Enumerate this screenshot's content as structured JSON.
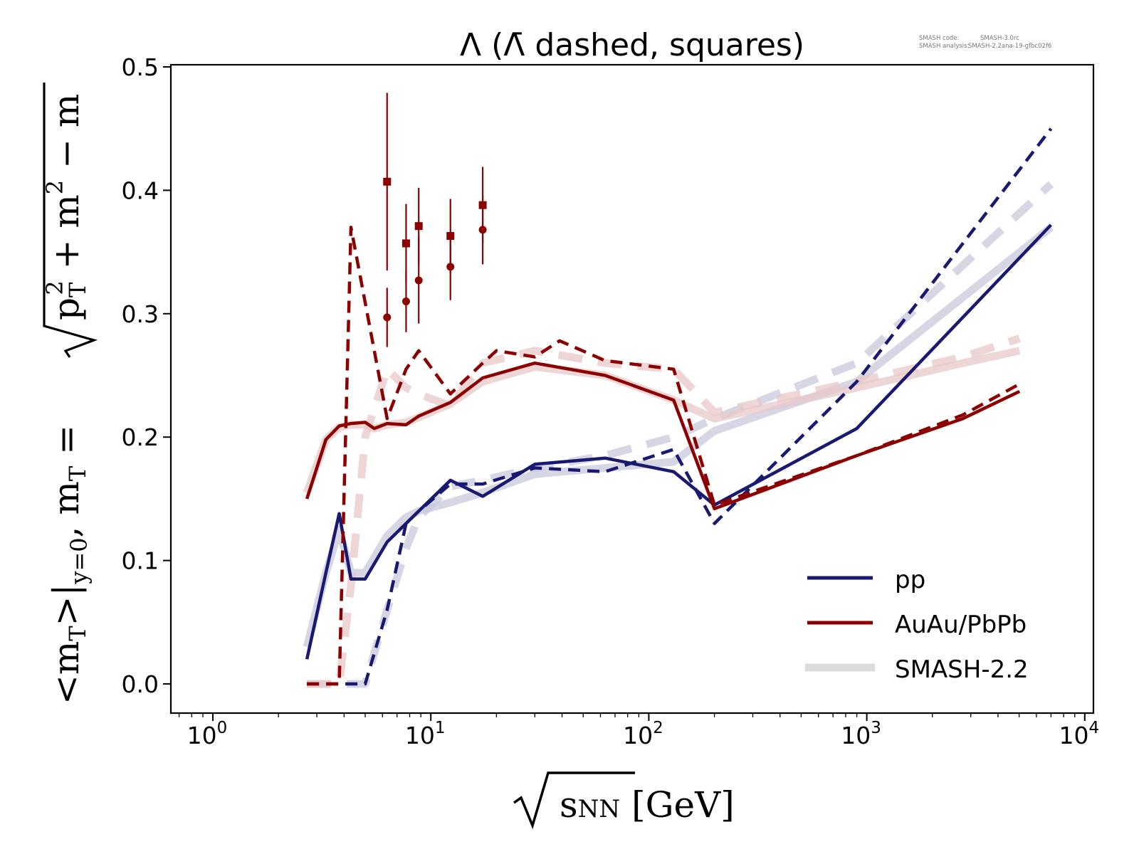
{
  "chart_data": {
    "type": "line",
    "title": "Λ (Λ̄ dashed, squares)",
    "xlabel": "√sNN [GeV]",
    "ylabel": "<mT>|y=0, mT = √(pT² + m²) − m",
    "xscale": "log",
    "xlim": [
      0.62,
      8700
    ],
    "ylim": [
      -0.024,
      0.502
    ],
    "x_ticks": [
      {
        "base": "10",
        "exp": "0",
        "value": 1
      },
      {
        "base": "10",
        "exp": "1",
        "value": 10
      },
      {
        "base": "10",
        "exp": "2",
        "value": 100
      },
      {
        "base": "10",
        "exp": "3",
        "value": 1000
      },
      {
        "base": "10",
        "exp": "4",
        "value": 10000
      }
    ],
    "y_ticks": [
      "0.0",
      "0.1",
      "0.2",
      "0.3",
      "0.4",
      "0.5"
    ],
    "y_tick_values": [
      0.0,
      0.1,
      0.2,
      0.3,
      0.4,
      0.5
    ],
    "grid": false,
    "legend_position": "lower-right",
    "legend": [
      {
        "label": "pp",
        "color": "#191970",
        "style": "solid"
      },
      {
        "label": "AuAu/PbPb",
        "color": "#8b0000",
        "style": "solid"
      },
      {
        "label": "SMASH-2.2",
        "color": "#dcdcdc",
        "style": "thick"
      }
    ],
    "annotation": {
      "line1_key": "SMASH code:",
      "line1_val": "SMASH-3.0rc",
      "line2_key": "SMASH analysis:",
      "line2_val": "SMASH-2.2ana-19-gfbc02f6"
    },
    "series": [
      {
        "name": "pp Λ (SMASH-2.2)",
        "color": "#c8c8dc",
        "style": "smash-solid",
        "x": [
          2.7,
          3.3,
          3.8,
          4.3,
          5.0,
          6.3,
          7.7,
          8.8,
          12.3,
          17.3,
          30,
          63,
          130,
          200,
          900,
          7000
        ],
        "y": [
          0.03,
          0.09,
          0.125,
          0.09,
          0.09,
          0.12,
          0.135,
          0.14,
          0.147,
          0.155,
          0.17,
          0.175,
          0.18,
          0.205,
          0.245,
          0.37
        ]
      },
      {
        "name": "pp anti-Λ (SMASH-2.2)",
        "color": "#c8c8dc",
        "style": "smash-dashed",
        "x": [
          2.7,
          3.8,
          5.0,
          6.3,
          7.7,
          8.8,
          12.3,
          17.3,
          30,
          63,
          130,
          200,
          900,
          7000
        ],
        "y": [
          0.0,
          0.0,
          0.0,
          0.06,
          0.11,
          0.135,
          0.16,
          0.165,
          0.175,
          0.185,
          0.2,
          0.215,
          0.26,
          0.405
        ]
      },
      {
        "name": "AuAu Λ (SMASH-2.2)",
        "color": "#e8c8c8",
        "style": "smash-solid",
        "x": [
          2.7,
          3.3,
          3.8,
          4.3,
          5.0,
          5.5,
          6.3,
          7.7,
          8.8,
          12.3,
          17.3,
          30,
          63,
          130,
          200,
          900,
          2760,
          5020
        ],
        "y": [
          0.155,
          0.198,
          0.208,
          0.21,
          0.21,
          0.207,
          0.21,
          0.212,
          0.216,
          0.227,
          0.245,
          0.257,
          0.25,
          0.23,
          0.215,
          0.24,
          0.26,
          0.27
        ]
      },
      {
        "name": "AuAu anti-Λ (SMASH-2.2)",
        "color": "#e8c8c8",
        "style": "smash-dashed",
        "x": [
          2.7,
          3.8,
          4.3,
          5.0,
          6.3,
          7.7,
          8.8,
          12.3,
          17.3,
          30,
          63,
          130,
          200,
          900,
          2760,
          5020
        ],
        "y": [
          0.0,
          0.0,
          0.08,
          0.2,
          0.255,
          0.24,
          0.235,
          0.225,
          0.26,
          0.27,
          0.26,
          0.255,
          0.22,
          0.245,
          0.265,
          0.28
        ]
      },
      {
        "name": "pp Λ",
        "color": "#191970",
        "style": "solid",
        "x": [
          2.7,
          3.3,
          3.8,
          4.3,
          5.0,
          6.3,
          7.7,
          8.8,
          12.3,
          17.3,
          30,
          63,
          130,
          200,
          900,
          7000
        ],
        "y": [
          0.02,
          0.09,
          0.138,
          0.085,
          0.085,
          0.115,
          0.13,
          0.14,
          0.165,
          0.152,
          0.178,
          0.183,
          0.172,
          0.145,
          0.207,
          0.372
        ]
      },
      {
        "name": "pp anti-Λ",
        "color": "#191970",
        "style": "dashed",
        "x": [
          2.7,
          3.8,
          5.0,
          6.3,
          7.7,
          8.8,
          12.3,
          17.3,
          30,
          63,
          130,
          200,
          900,
          7000
        ],
        "y": [
          0.0,
          0.0,
          0.0,
          0.06,
          0.13,
          0.14,
          0.162,
          0.162,
          0.175,
          0.172,
          0.19,
          0.13,
          0.245,
          0.45
        ]
      },
      {
        "name": "AuAu/PbPb Λ",
        "color": "#8b0000",
        "style": "solid",
        "x": [
          2.7,
          3.3,
          3.8,
          4.3,
          5.0,
          5.5,
          6.3,
          7.7,
          8.8,
          12.3,
          17.3,
          30,
          63,
          130,
          200,
          900,
          2760,
          5020
        ],
        "y": [
          0.15,
          0.198,
          0.209,
          0.211,
          0.212,
          0.207,
          0.211,
          0.21,
          0.217,
          0.228,
          0.248,
          0.26,
          0.25,
          0.23,
          0.142,
          0.185,
          0.215,
          0.237
        ]
      },
      {
        "name": "AuAu/PbPb anti-Λ",
        "color": "#8b0000",
        "style": "dashed",
        "x": [
          2.7,
          3.8,
          4.3,
          6.3,
          7.7,
          8.8,
          12.3,
          17.3,
          20,
          30,
          39,
          63,
          130,
          200,
          900,
          2760,
          5020
        ],
        "y": [
          0.0,
          0.0,
          0.37,
          0.215,
          0.255,
          0.27,
          0.235,
          0.26,
          0.27,
          0.265,
          0.278,
          0.262,
          0.255,
          0.145,
          0.185,
          0.218,
          0.243
        ]
      }
    ],
    "data_points": {
      "color": "#8b0000",
      "lambda_circles": {
        "x": [
          6.3,
          7.7,
          8.8,
          12.3,
          17.3
        ],
        "y": [
          0.297,
          0.31,
          0.327,
          0.338,
          0.368
        ],
        "yerr": [
          0.024,
          0.025,
          0.035,
          0.027,
          0.028
        ]
      },
      "antilambda_squares": {
        "x": [
          6.3,
          7.7,
          8.8,
          12.3,
          17.3
        ],
        "y": [
          0.407,
          0.357,
          0.371,
          0.363,
          0.388
        ],
        "yerr": [
          0.072,
          0.032,
          0.031,
          0.03,
          0.031
        ]
      }
    }
  }
}
